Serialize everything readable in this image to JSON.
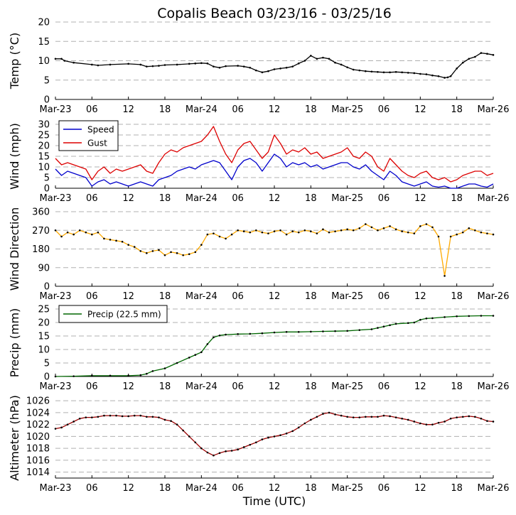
{
  "chart_data": {
    "title": "Copalis Beach 03/23/16 - 03/25/16",
    "xlabel": "Time (UTC)",
    "x_range_hours": [
      0,
      72
    ],
    "x_ticks": [
      {
        "h": 0,
        "label": "Mar-23"
      },
      {
        "h": 6,
        "label": "06"
      },
      {
        "h": 12,
        "label": "12"
      },
      {
        "h": 18,
        "label": "18"
      },
      {
        "h": 24,
        "label": "Mar-24"
      },
      {
        "h": 30,
        "label": "06"
      },
      {
        "h": 36,
        "label": "12"
      },
      {
        "h": 42,
        "label": "18"
      },
      {
        "h": 48,
        "label": "Mar-25"
      },
      {
        "h": 54,
        "label": "06"
      },
      {
        "h": 60,
        "label": "12"
      },
      {
        "h": 66,
        "label": "18"
      },
      {
        "h": 72,
        "label": "Mar-26"
      }
    ],
    "panels": [
      {
        "id": "temp",
        "type": "line",
        "ylabel": "Temp (°C)",
        "ylim": [
          0,
          20
        ],
        "yticks": [
          0,
          5,
          10,
          15,
          20
        ],
        "series": [
          {
            "name": "Temp",
            "color": "#000000",
            "x": [
              0,
              1,
              1.5,
              3,
              6,
              7,
              9,
              12,
              14,
              15,
              16,
              17,
              18,
              20,
              22,
              23,
              24,
              25,
              26,
              27,
              28,
              30,
              31,
              32,
              33,
              34,
              35,
              36,
              37,
              38,
              39,
              40,
              41,
              42,
              43,
              44,
              45,
              46,
              47,
              48,
              49,
              50,
              51,
              52,
              53,
              54,
              55,
              56,
              57,
              58,
              59,
              60,
              61,
              62,
              63,
              64,
              64.5,
              65,
              66,
              67,
              68,
              69,
              70,
              71,
              72
            ],
            "y": [
              10.5,
              10.5,
              10,
              9.5,
              9,
              8.8,
              9,
              9.2,
              9,
              8.5,
              8.6,
              8.7,
              8.9,
              9,
              9.2,
              9.3,
              9.4,
              9.3,
              8.5,
              8.2,
              8.6,
              8.7,
              8.5,
              8.2,
              7.5,
              7,
              7.3,
              7.8,
              8,
              8.2,
              8.5,
              9.3,
              10,
              11.3,
              10.5,
              10.8,
              10.5,
              9.5,
              9,
              8.3,
              7.7,
              7.5,
              7.3,
              7.2,
              7.1,
              7,
              7,
              7.1,
              7,
              6.9,
              6.8,
              6.6,
              6.5,
              6.2,
              6,
              5.6,
              5.7,
              6,
              8,
              9.5,
              10.5,
              11,
              12,
              11.8,
              11.5
            ]
          }
        ]
      },
      {
        "id": "wind",
        "type": "line",
        "ylabel": "Wind (mph)",
        "ylim": [
          0,
          30
        ],
        "yticks": [
          0,
          5,
          10,
          15,
          20,
          25,
          30
        ],
        "legend": {
          "position": "upper-left",
          "entries": [
            "Speed",
            "Gust"
          ]
        },
        "series": [
          {
            "name": "Speed",
            "color": "#0000cc",
            "x": [
              0,
              1,
              2,
              3,
              4,
              5,
              6,
              7,
              8,
              9,
              10,
              11,
              12,
              13,
              14,
              15,
              16,
              17,
              18,
              19,
              20,
              21,
              22,
              23,
              24,
              25,
              26,
              27,
              28,
              29,
              30,
              31,
              32,
              33,
              34,
              35,
              36,
              37,
              38,
              39,
              40,
              41,
              42,
              43,
              44,
              45,
              46,
              47,
              48,
              49,
              50,
              51,
              52,
              53,
              54,
              55,
              56,
              57,
              58,
              59,
              60,
              61,
              62,
              63,
              64,
              65,
              66,
              67,
              68,
              69,
              70,
              71,
              72
            ],
            "y": [
              9,
              6,
              8,
              7,
              6,
              5,
              1,
              3,
              4,
              2,
              3,
              2,
              1,
              2,
              3,
              2,
              1,
              4,
              5,
              6,
              8,
              9,
              10,
              9,
              11,
              12,
              13,
              12,
              8,
              4,
              10,
              13,
              14,
              12,
              8,
              12,
              16,
              14,
              10,
              12,
              11,
              12,
              10,
              11,
              9,
              10,
              11,
              12,
              12,
              10,
              9,
              11,
              8,
              6,
              4,
              8,
              6,
              3,
              2,
              1,
              2,
              3,
              1,
              0.5,
              1,
              0,
              0,
              1,
              2,
              2,
              1,
              0.5,
              2
            ]
          },
          {
            "name": "Gust",
            "color": "#dd0000",
            "x": [
              0,
              1,
              2,
              3,
              4,
              5,
              6,
              7,
              8,
              9,
              10,
              11,
              12,
              13,
              14,
              15,
              16,
              17,
              18,
              19,
              20,
              21,
              22,
              23,
              24,
              25,
              26,
              27,
              28,
              29,
              30,
              31,
              32,
              33,
              34,
              35,
              36,
              37,
              38,
              39,
              40,
              41,
              42,
              43,
              44,
              45,
              46,
              47,
              48,
              49,
              50,
              51,
              52,
              53,
              54,
              55,
              56,
              57,
              58,
              59,
              60,
              61,
              62,
              63,
              64,
              65,
              66,
              67,
              68,
              69,
              70,
              71,
              72
            ],
            "y": [
              14,
              11,
              12,
              11,
              10,
              9,
              4,
              8,
              10,
              7,
              9,
              8,
              9,
              10,
              11,
              8,
              7,
              12,
              16,
              18,
              17,
              19,
              20,
              21,
              22,
              25,
              29,
              22,
              16,
              12,
              18,
              21,
              22,
              18,
              14,
              17,
              25,
              21,
              16,
              18,
              17,
              19,
              16,
              17,
              14,
              15,
              16,
              17,
              19,
              15,
              14,
              17,
              15,
              10,
              8,
              14,
              11,
              8,
              6,
              5,
              7,
              8,
              5,
              4,
              5,
              3,
              4,
              6,
              7,
              8,
              8,
              6,
              7
            ]
          }
        ]
      },
      {
        "id": "dir",
        "type": "scatter-line",
        "ylabel": "Wind Direction",
        "ylim": [
          0,
          360
        ],
        "yticks": [
          0,
          90,
          180,
          270,
          360
        ],
        "series": [
          {
            "name": "Direction",
            "color": "#ffaa00",
            "x": [
              0,
              1,
              2,
              3,
              4,
              5,
              6,
              7,
              8,
              9,
              10,
              11,
              12,
              13,
              14,
              15,
              16,
              17,
              18,
              19,
              20,
              21,
              22,
              23,
              24,
              25,
              26,
              27,
              28,
              29,
              30,
              31,
              32,
              33,
              34,
              35,
              36,
              37,
              38,
              39,
              40,
              41,
              42,
              43,
              44,
              45,
              46,
              47,
              48,
              49,
              50,
              51,
              52,
              53,
              54,
              55,
              56,
              57,
              58,
              59,
              60,
              61,
              62,
              63,
              64,
              65,
              66,
              67,
              68,
              69,
              70,
              71,
              72
            ],
            "y": [
              270,
              240,
              260,
              250,
              270,
              260,
              250,
              260,
              230,
              225,
              220,
              215,
              200,
              190,
              170,
              160,
              170,
              175,
              150,
              165,
              160,
              150,
              155,
              165,
              200,
              250,
              255,
              240,
              230,
              250,
              270,
              265,
              260,
              270,
              260,
              255,
              265,
              270,
              250,
              265,
              260,
              270,
              265,
              255,
              275,
              260,
              265,
              270,
              275,
              270,
              280,
              300,
              285,
              270,
              280,
              290,
              275,
              265,
              260,
              255,
              290,
              300,
              285,
              240,
              50,
              240,
              250,
              260,
              280,
              270,
              260,
              255,
              250
            ]
          }
        ]
      },
      {
        "id": "precip",
        "type": "line",
        "ylabel": "Precip (mm)",
        "ylim": [
          0,
          25
        ],
        "yticks": [
          0,
          5,
          10,
          15,
          20,
          25
        ],
        "legend": {
          "position": "upper-left",
          "entries": [
            "Precip (22.5 mm)"
          ]
        },
        "series": [
          {
            "name": "Precip (22.5 mm)",
            "color": "#006600",
            "x": [
              0,
              3,
              6,
              9,
              12,
              14,
              15,
              16,
              18,
              20,
              22,
              23,
              24,
              25,
              26,
              27,
              28,
              30,
              32,
              34,
              36,
              38,
              40,
              42,
              44,
              46,
              48,
              50,
              52,
              53,
              54,
              55,
              56,
              58,
              59,
              60,
              61,
              62,
              64,
              66,
              68,
              70,
              72
            ],
            "y": [
              0,
              0.1,
              0.3,
              0.3,
              0.3,
              0.5,
              1,
              2,
              3,
              5,
              7,
              8,
              9,
              12,
              14.5,
              15.2,
              15.5,
              15.7,
              15.8,
              16,
              16.3,
              16.5,
              16.5,
              16.6,
              16.7,
              16.8,
              16.9,
              17.2,
              17.5,
              18,
              18.5,
              19,
              19.5,
              19.8,
              20,
              21,
              21.5,
              21.6,
              22,
              22.3,
              22.4,
              22.5,
              22.5
            ]
          }
        ]
      },
      {
        "id": "altimeter",
        "type": "line",
        "ylabel": "Altimeter (hPa)",
        "ylim": [
          1013,
          1026.5
        ],
        "yticks": [
          1014,
          1016,
          1018,
          1020,
          1022,
          1024,
          1026
        ],
        "series": [
          {
            "name": "Altimeter",
            "color": "#990000",
            "x": [
              0,
              1,
              2,
              3,
              4,
              5,
              6,
              7,
              8,
              9,
              10,
              11,
              12,
              13,
              14,
              15,
              16,
              17,
              18,
              19,
              20,
              21,
              22,
              23,
              24,
              25,
              26,
              27,
              28,
              29,
              30,
              31,
              32,
              33,
              34,
              35,
              36,
              37,
              38,
              39,
              40,
              41,
              42,
              43,
              44,
              45,
              46,
              47,
              48,
              49,
              50,
              51,
              52,
              53,
              54,
              55,
              56,
              57,
              58,
              59,
              60,
              61,
              62,
              63,
              64,
              65,
              66,
              67,
              68,
              69,
              70,
              71,
              72
            ],
            "y": [
              1021.3,
              1021.5,
              1022,
              1022.5,
              1023,
              1023.2,
              1023.2,
              1023.3,
              1023.5,
              1023.5,
              1023.5,
              1023.4,
              1023.4,
              1023.5,
              1023.5,
              1023.3,
              1023.3,
              1023.2,
              1022.8,
              1022.6,
              1022,
              1021,
              1020,
              1019,
              1018,
              1017.3,
              1016.8,
              1017.2,
              1017.5,
              1017.6,
              1017.8,
              1018.2,
              1018.6,
              1019,
              1019.5,
              1019.8,
              1020,
              1020.2,
              1020.5,
              1020.9,
              1021.5,
              1022.2,
              1022.8,
              1023.3,
              1023.8,
              1024,
              1023.7,
              1023.5,
              1023.3,
              1023.2,
              1023.2,
              1023.3,
              1023.3,
              1023.3,
              1023.5,
              1023.4,
              1023.2,
              1023,
              1022.8,
              1022.5,
              1022.2,
              1022,
              1022,
              1022.3,
              1022.5,
              1023,
              1023.2,
              1023.3,
              1023.4,
              1023.3,
              1023,
              1022.6,
              1022.5
            ]
          }
        ]
      }
    ]
  }
}
